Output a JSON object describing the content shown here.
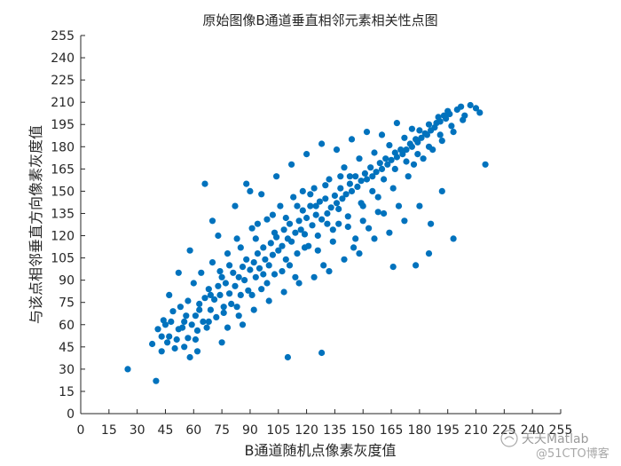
{
  "chart_data": {
    "type": "scatter",
    "title": "原始图像B通道垂直相邻元素相关性点图",
    "xlabel": "B通道随机点像素灰度值",
    "ylabel": "与该点相邻垂直方向像素灰度值",
    "xlim": [
      0,
      255
    ],
    "ylim": [
      0,
      255
    ],
    "xticks": [
      0,
      15,
      30,
      45,
      60,
      75,
      90,
      105,
      120,
      135,
      150,
      165,
      180,
      195,
      210,
      225,
      240,
      255
    ],
    "yticks": [
      0,
      15,
      30,
      45,
      60,
      75,
      90,
      105,
      120,
      135,
      150,
      165,
      180,
      195,
      210,
      225,
      240,
      255
    ],
    "grid": false,
    "marker_color": "#0072bd",
    "series": [
      {
        "name": "",
        "points": [
          [
            25,
            30
          ],
          [
            40,
            22
          ],
          [
            38,
            47
          ],
          [
            41,
            57
          ],
          [
            43,
            42
          ],
          [
            44,
            63
          ],
          [
            47,
            52
          ],
          [
            49,
            69
          ],
          [
            50,
            44
          ],
          [
            52,
            57
          ],
          [
            53,
            72
          ],
          [
            55,
            62
          ],
          [
            57,
            51
          ],
          [
            57,
            76
          ],
          [
            59,
            60
          ],
          [
            60,
            88
          ],
          [
            61,
            66
          ],
          [
            62,
            56
          ],
          [
            63,
            70
          ],
          [
            64,
            95
          ],
          [
            65,
            62
          ],
          [
            66,
            78
          ],
          [
            67,
            58
          ],
          [
            68,
            84
          ],
          [
            69,
            70
          ],
          [
            70,
            102
          ],
          [
            71,
            77
          ],
          [
            72,
            65
          ],
          [
            73,
            86
          ],
          [
            74,
            80
          ],
          [
            75,
            92
          ],
          [
            76,
            72
          ],
          [
            77,
            88
          ],
          [
            78,
            108
          ],
          [
            79,
            81
          ],
          [
            80,
            74
          ],
          [
            81,
            95
          ],
          [
            82,
            86
          ],
          [
            83,
            118
          ],
          [
            84,
            92
          ],
          [
            85,
            80
          ],
          [
            86,
            99
          ],
          [
            87,
            90
          ],
          [
            88,
            104
          ],
          [
            89,
            83
          ],
          [
            90,
            97
          ],
          [
            91,
            125
          ],
          [
            92,
            102
          ],
          [
            93,
            92
          ],
          [
            94,
            108
          ],
          [
            95,
            98
          ],
          [
            96,
            84
          ],
          [
            97,
            112
          ],
          [
            98,
            104
          ],
          [
            99,
            131
          ],
          [
            100,
            100
          ],
          [
            101,
            115
          ],
          [
            102,
            107
          ],
          [
            103,
            94
          ],
          [
            104,
            119
          ],
          [
            105,
            110
          ],
          [
            106,
            140
          ],
          [
            107,
            113
          ],
          [
            108,
            124
          ],
          [
            109,
            104
          ],
          [
            110,
            118
          ],
          [
            111,
            128
          ],
          [
            112,
            116
          ],
          [
            113,
            146
          ],
          [
            114,
            122
          ],
          [
            115,
            108
          ],
          [
            116,
            130
          ],
          [
            117,
            124
          ],
          [
            118,
            137
          ],
          [
            119,
            121
          ],
          [
            120,
            132
          ],
          [
            121,
            113
          ],
          [
            122,
            140
          ],
          [
            123,
            127
          ],
          [
            124,
            152
          ],
          [
            125,
            134
          ],
          [
            126,
            120
          ],
          [
            127,
            143
          ],
          [
            128,
            131
          ],
          [
            129,
            100
          ],
          [
            130,
            145
          ],
          [
            131,
            135
          ],
          [
            132,
            158
          ],
          [
            133,
            139
          ],
          [
            134,
            124
          ],
          [
            135,
            147
          ],
          [
            136,
            142
          ],
          [
            137,
            128
          ],
          [
            138,
            152
          ],
          [
            139,
            145
          ],
          [
            140,
            166
          ],
          [
            141,
            148
          ],
          [
            142,
            133
          ],
          [
            143,
            155
          ],
          [
            144,
            150
          ],
          [
            145,
            112
          ],
          [
            146,
            160
          ],
          [
            147,
            153
          ],
          [
            148,
            172
          ],
          [
            149,
            157
          ],
          [
            150,
            140
          ],
          [
            151,
            162
          ],
          [
            152,
            158
          ],
          [
            153,
            125
          ],
          [
            154,
            166
          ],
          [
            155,
            160
          ],
          [
            156,
            176
          ],
          [
            157,
            163
          ],
          [
            158,
            146
          ],
          [
            159,
            169
          ],
          [
            160,
            165
          ],
          [
            161,
            135
          ],
          [
            162,
            172
          ],
          [
            163,
            168
          ],
          [
            164,
            181
          ],
          [
            165,
            171
          ],
          [
            166,
            152
          ],
          [
            167,
            176
          ],
          [
            168,
            173
          ],
          [
            169,
            140
          ],
          [
            170,
            178
          ],
          [
            171,
            175
          ],
          [
            172,
            186
          ],
          [
            173,
            178
          ],
          [
            174,
            160
          ],
          [
            175,
            182
          ],
          [
            176,
            180
          ],
          [
            177,
            168
          ],
          [
            178,
            185
          ],
          [
            179,
            183
          ],
          [
            180,
            191
          ],
          [
            181,
            186
          ],
          [
            182,
            172
          ],
          [
            183,
            189
          ],
          [
            184,
            188
          ],
          [
            185,
            195
          ],
          [
            186,
            191
          ],
          [
            187,
            178
          ],
          [
            188,
            193
          ],
          [
            189,
            196
          ],
          [
            190,
            200
          ],
          [
            191,
            197
          ],
          [
            192,
            184
          ],
          [
            193,
            201
          ],
          [
            194,
            199
          ],
          [
            195,
            204
          ],
          [
            196,
            202
          ],
          [
            198,
            190
          ],
          [
            200,
            205
          ],
          [
            202,
            207
          ],
          [
            204,
            201
          ],
          [
            207,
            208
          ],
          [
            210,
            206
          ],
          [
            212,
            203
          ],
          [
            215,
            168
          ],
          [
            58,
            110
          ],
          [
            62,
            42
          ],
          [
            70,
            130
          ],
          [
            75,
            48
          ],
          [
            82,
            140
          ],
          [
            86,
            60
          ],
          [
            88,
            155
          ],
          [
            92,
            70
          ],
          [
            96,
            148
          ],
          [
            100,
            76
          ],
          [
            104,
            160
          ],
          [
            108,
            82
          ],
          [
            112,
            168
          ],
          [
            116,
            88
          ],
          [
            120,
            175
          ],
          [
            124,
            92
          ],
          [
            128,
            182
          ],
          [
            132,
            96
          ],
          [
            136,
            178
          ],
          [
            140,
            104
          ],
          [
            144,
            185
          ],
          [
            148,
            108
          ],
          [
            152,
            190
          ],
          [
            156,
            118
          ],
          [
            160,
            188
          ],
          [
            164,
            122
          ],
          [
            168,
            196
          ],
          [
            172,
            130
          ],
          [
            176,
            192
          ],
          [
            180,
            140
          ],
          [
            186,
            128
          ],
          [
            192,
            150
          ],
          [
            198,
            118
          ],
          [
            110,
            38
          ],
          [
            128,
            41
          ],
          [
            166,
            99
          ],
          [
            178,
            100
          ],
          [
            185,
            108
          ],
          [
            66,
            155
          ],
          [
            73,
            120
          ],
          [
            90,
            150
          ],
          [
            58,
            38
          ],
          [
            47,
            80
          ],
          [
            52,
            95
          ],
          [
            55,
            45
          ],
          [
            78,
            58
          ],
          [
            84,
            66
          ],
          [
            94,
            128
          ],
          [
            102,
            134
          ],
          [
            114,
            92
          ],
          [
            118,
            150
          ],
          [
            126,
            110
          ],
          [
            134,
            116
          ],
          [
            142,
            126
          ],
          [
            150,
            130
          ],
          [
            158,
            136
          ],
          [
            146,
            118
          ],
          [
            138,
            160
          ],
          [
            130,
            154
          ],
          [
            122,
            148
          ],
          [
            115,
            140
          ],
          [
            107,
            96
          ],
          [
            99,
            88
          ],
          [
            91,
            80
          ],
          [
            83,
            72
          ],
          [
            76,
            68
          ],
          [
            68,
            62
          ],
          [
            61,
            50
          ],
          [
            54,
            58
          ],
          [
            46,
            48
          ],
          [
            43,
            52
          ],
          [
            45,
            60
          ],
          [
            48,
            62
          ],
          [
            51,
            50
          ],
          [
            56,
            66
          ],
          [
            63,
            74
          ],
          [
            69,
            80
          ],
          [
            74,
            96
          ],
          [
            79,
            100
          ],
          [
            85,
            112
          ],
          [
            93,
            118
          ],
          [
            97,
            94
          ],
          [
            103,
            122
          ],
          [
            109,
            132
          ],
          [
            111,
            100
          ],
          [
            119,
            112
          ],
          [
            125,
            140
          ],
          [
            131,
            128
          ],
          [
            137,
            138
          ],
          [
            143,
            160
          ],
          [
            149,
            142
          ],
          [
            155,
            150
          ],
          [
            161,
            158
          ],
          [
            167,
            165
          ],
          [
            173,
            170
          ],
          [
            179,
            175
          ],
          [
            185,
            180
          ],
          [
            191,
            188
          ],
          [
            197,
            194
          ],
          [
            203,
            198
          ]
        ]
      }
    ]
  },
  "watermark": {
    "line1": "天天Matlab",
    "line2": "@51CTO博客"
  }
}
